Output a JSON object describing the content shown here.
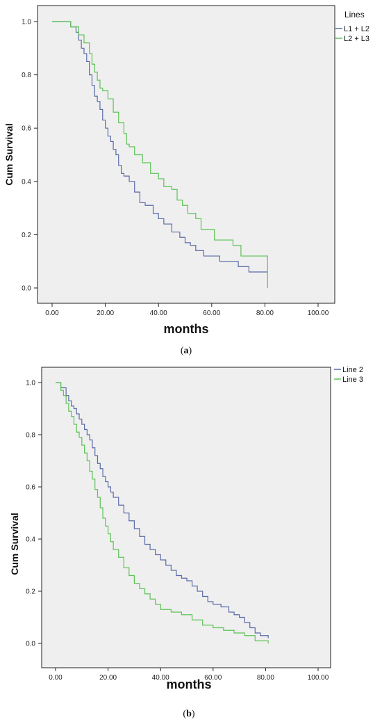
{
  "chart_data": [
    {
      "type": "line",
      "caption_pre": "(",
      "caption_letter": "a",
      "caption_post": ")",
      "xlabel": "months",
      "ylabel": "Cum Survival",
      "legend_title": "Lines",
      "legend_position": "top-right",
      "xlim": [
        0,
        100
      ],
      "ylim": [
        0,
        1
      ],
      "xticks": [
        "0.00",
        "20.00",
        "40.00",
        "60.00",
        "80.00",
        "100.00"
      ],
      "yticks": [
        "0.0",
        "0.2",
        "0.4",
        "0.6",
        "0.8",
        "1.0"
      ],
      "grid": false,
      "series": [
        {
          "name": "L1 + L2",
          "color": "#5a6aa8",
          "x": [
            0,
            7,
            9,
            10,
            11,
            12,
            13,
            14,
            15,
            16,
            17,
            18,
            19,
            20,
            21,
            22,
            23,
            24,
            25,
            26,
            27,
            29,
            31,
            33,
            35,
            38,
            40,
            42,
            45,
            48,
            50,
            52,
            54,
            57,
            60,
            63,
            67,
            70,
            74,
            81
          ],
          "y": [
            1.0,
            0.98,
            0.96,
            0.93,
            0.9,
            0.88,
            0.85,
            0.8,
            0.76,
            0.72,
            0.7,
            0.67,
            0.63,
            0.6,
            0.57,
            0.55,
            0.52,
            0.5,
            0.46,
            0.43,
            0.42,
            0.4,
            0.36,
            0.32,
            0.31,
            0.28,
            0.26,
            0.24,
            0.21,
            0.19,
            0.17,
            0.16,
            0.14,
            0.12,
            0.12,
            0.1,
            0.1,
            0.08,
            0.06,
            0.06
          ]
        },
        {
          "name": "L2 + L3",
          "color": "#5cc256",
          "x": [
            0,
            7,
            10,
            12,
            14,
            15,
            16,
            17,
            18,
            19,
            21,
            23,
            25,
            27,
            28,
            29,
            31,
            34,
            37,
            40,
            42,
            45,
            47,
            49,
            51,
            54,
            56,
            58,
            61,
            64,
            68,
            71,
            74,
            81
          ],
          "y": [
            1.0,
            0.98,
            0.95,
            0.92,
            0.88,
            0.84,
            0.81,
            0.78,
            0.75,
            0.74,
            0.71,
            0.66,
            0.62,
            0.58,
            0.54,
            0.53,
            0.5,
            0.47,
            0.43,
            0.41,
            0.38,
            0.37,
            0.33,
            0.31,
            0.28,
            0.26,
            0.22,
            0.22,
            0.18,
            0.18,
            0.16,
            0.12,
            0.12,
            0.0
          ]
        }
      ]
    },
    {
      "type": "line",
      "caption_pre": "(",
      "caption_letter": "b",
      "caption_post": ")",
      "xlabel": "months",
      "ylabel": "Cum Survival",
      "legend_position": "top-right",
      "xlim": [
        0,
        100
      ],
      "ylim": [
        0,
        1
      ],
      "xticks": [
        "0.00",
        "20.00",
        "40.00",
        "60.00",
        "80.00",
        "100.00"
      ],
      "yticks": [
        "0.0",
        "0.2",
        "0.4",
        "0.6",
        "0.8",
        "1.0"
      ],
      "grid": false,
      "series": [
        {
          "name": "Line 2",
          "color": "#5a6aa8",
          "x": [
            0,
            2,
            4,
            5,
            6,
            7,
            8,
            9,
            10,
            11,
            12,
            13,
            14,
            15,
            16,
            17,
            18,
            19,
            20,
            21,
            22,
            24,
            26,
            28,
            30,
            32,
            34,
            36,
            38,
            40,
            42,
            44,
            46,
            48,
            50,
            52,
            54,
            56,
            58,
            60,
            63,
            66,
            68,
            70,
            72,
            74,
            76,
            78,
            81
          ],
          "y": [
            1.0,
            0.98,
            0.95,
            0.93,
            0.91,
            0.9,
            0.88,
            0.86,
            0.84,
            0.82,
            0.8,
            0.78,
            0.75,
            0.72,
            0.69,
            0.67,
            0.64,
            0.62,
            0.6,
            0.58,
            0.56,
            0.53,
            0.5,
            0.47,
            0.44,
            0.41,
            0.38,
            0.36,
            0.34,
            0.32,
            0.3,
            0.28,
            0.26,
            0.25,
            0.24,
            0.22,
            0.2,
            0.18,
            0.16,
            0.15,
            0.14,
            0.12,
            0.11,
            0.1,
            0.08,
            0.06,
            0.04,
            0.03,
            0.02
          ]
        },
        {
          "name": "Line 3",
          "color": "#5cc256",
          "x": [
            0,
            2,
            3,
            4,
            5,
            6,
            7,
            8,
            9,
            10,
            11,
            12,
            13,
            14,
            15,
            16,
            17,
            18,
            19,
            20,
            21,
            22,
            24,
            26,
            28,
            30,
            32,
            34,
            36,
            38,
            40,
            44,
            48,
            52,
            56,
            60,
            64,
            68,
            72,
            76,
            81
          ],
          "y": [
            1.0,
            0.97,
            0.95,
            0.92,
            0.89,
            0.87,
            0.84,
            0.81,
            0.79,
            0.76,
            0.73,
            0.7,
            0.66,
            0.63,
            0.59,
            0.56,
            0.52,
            0.48,
            0.45,
            0.42,
            0.39,
            0.36,
            0.33,
            0.29,
            0.26,
            0.23,
            0.21,
            0.19,
            0.17,
            0.15,
            0.13,
            0.12,
            0.11,
            0.09,
            0.07,
            0.06,
            0.05,
            0.04,
            0.03,
            0.01,
            0.0
          ]
        }
      ]
    }
  ]
}
